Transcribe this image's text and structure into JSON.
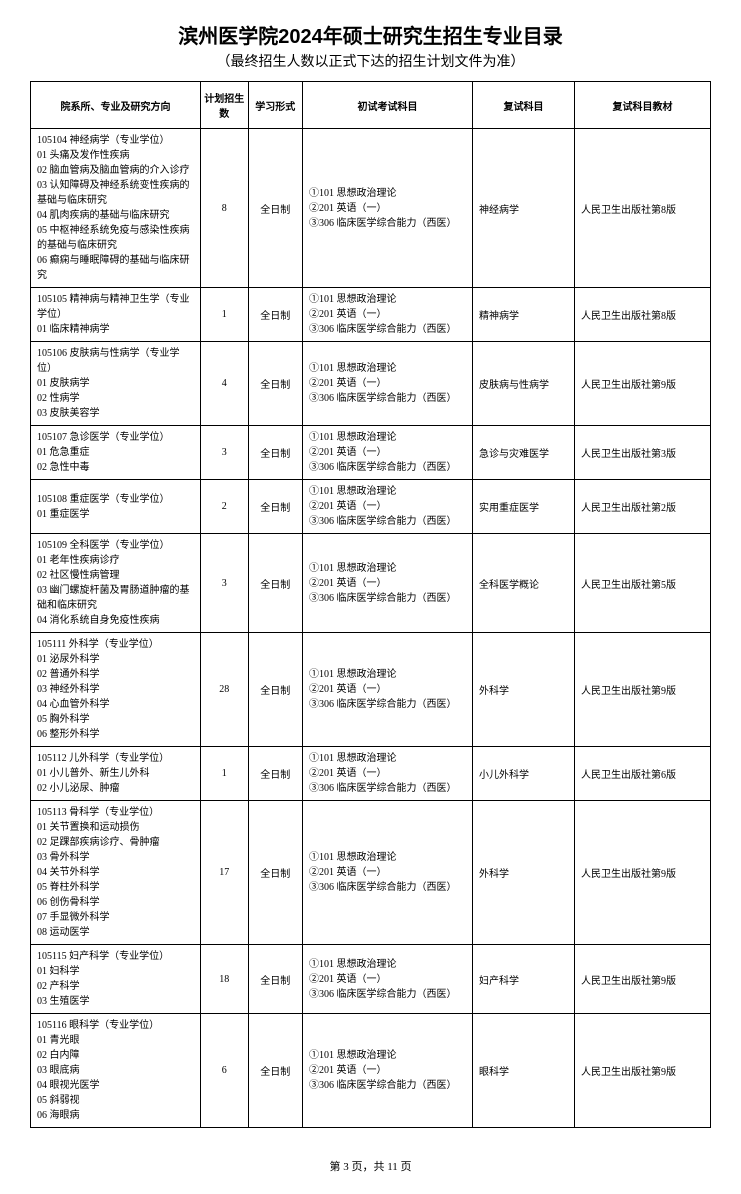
{
  "title": "滨州医学院2024年硕士研究生招生专业目录",
  "subtitle": "（最终招生人数以正式下达的招生计划文件为准）",
  "headers": {
    "col1": "院系所、专业及研究方向",
    "col2": "计划招生数",
    "col3": "学习形式",
    "col4": "初试考试科目",
    "col5": "复试科目",
    "col6": "复试科目教材"
  },
  "commonExam": "①101 思想政治理论\n②201 英语（一）\n③306 临床医学综合能力（西医）",
  "rows": [
    {
      "dept": "105104 神经病学（专业学位）\n01 头痛及发作性疾病\n02 脑血管病及脑血管病的介入诊疗\n03 认知障碍及神经系统变性疾病的基础与临床研究\n04 肌肉疾病的基础与临床研究\n05 中枢神经系统免疫与感染性疾病的基础与临床研究\n06 癫痫与睡眠障碍的基础与临床研究",
      "count": "8",
      "mode": "全日制",
      "subject": "神经病学",
      "textbook": "人民卫生出版社第8版"
    },
    {
      "dept": "105105 精神病与精神卫生学（专业学位）\n01 临床精神病学",
      "count": "1",
      "mode": "全日制",
      "subject": "精神病学",
      "textbook": "人民卫生出版社第8版"
    },
    {
      "dept": "105106 皮肤病与性病学（专业学位）\n01 皮肤病学\n02 性病学\n03 皮肤美容学",
      "count": "4",
      "mode": "全日制",
      "subject": "皮肤病与性病学",
      "textbook": "人民卫生出版社第9版"
    },
    {
      "dept": "105107 急诊医学（专业学位）\n01 危急重症\n02 急性中毒",
      "count": "3",
      "mode": "全日制",
      "subject": "急诊与灾难医学",
      "textbook": "人民卫生出版社第3版"
    },
    {
      "dept": "105108 重症医学（专业学位）\n01 重症医学",
      "count": "2",
      "mode": "全日制",
      "subject": "实用重症医学",
      "textbook": "人民卫生出版社第2版"
    },
    {
      "dept": "105109 全科医学（专业学位）\n01 老年性疾病诊疗\n02 社区慢性病管理\n03 幽门螺旋杆菌及胃肠道肿瘤的基础和临床研究\n04 消化系统自身免疫性疾病",
      "count": "3",
      "mode": "全日制",
      "subject": "全科医学概论",
      "textbook": "人民卫生出版社第5版"
    },
    {
      "dept": "105111 外科学（专业学位）\n01 泌尿外科学\n02 普通外科学\n03 神经外科学\n04 心血管外科学\n05 胸外科学\n06 整形外科学",
      "count": "28",
      "mode": "全日制",
      "subject": "外科学",
      "textbook": "人民卫生出版社第9版"
    },
    {
      "dept": "105112 儿外科学（专业学位）\n01 小儿普外、新生儿外科\n02 小儿泌尿、肿瘤",
      "count": "1",
      "mode": "全日制",
      "subject": "小儿外科学",
      "textbook": "人民卫生出版社第6版"
    },
    {
      "dept": "105113 骨科学（专业学位）\n01 关节置换和运动损伤\n02 足踝部疾病诊疗、骨肿瘤\n03 骨外科学\n04 关节外科学\n05 脊柱外科学\n06 创伤骨科学\n07 手显微外科学\n08 运动医学",
      "count": "17",
      "mode": "全日制",
      "subject": "外科学",
      "textbook": "人民卫生出版社第9版"
    },
    {
      "dept": "105115 妇产科学（专业学位）\n01 妇科学\n02 产科学\n03 生殖医学",
      "count": "18",
      "mode": "全日制",
      "subject": "妇产科学",
      "textbook": "人民卫生出版社第9版"
    },
    {
      "dept": "105116 眼科学（专业学位）\n01 青光眼\n02 白内障\n03 眼底病\n04 眼视光医学\n05 斜弱视\n06 海眼病",
      "count": "6",
      "mode": "全日制",
      "subject": "眼科学",
      "textbook": "人民卫生出版社第9版"
    }
  ],
  "footer": "第 3 页，共 11 页"
}
